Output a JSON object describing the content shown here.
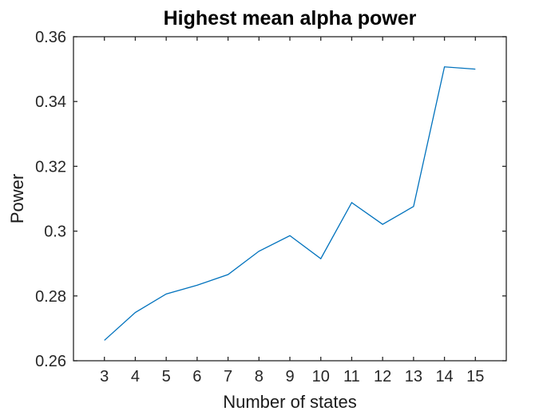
{
  "figure": {
    "background": "#ffffff"
  },
  "chart_data": {
    "type": "line",
    "title": "Highest mean alpha power",
    "xlabel": "Number of states",
    "ylabel": "Power",
    "x": [
      3,
      4,
      5,
      6,
      7,
      8,
      9,
      10,
      11,
      12,
      13,
      14,
      15
    ],
    "y": [
      0.2663,
      0.2749,
      0.2806,
      0.2833,
      0.2866,
      0.2938,
      0.2986,
      0.2915,
      0.3088,
      0.3021,
      0.3076,
      0.3507,
      0.35
    ],
    "xlim": [
      2,
      16
    ],
    "ylim": [
      0.26,
      0.36
    ],
    "xticks": [
      3,
      4,
      5,
      6,
      7,
      8,
      9,
      10,
      11,
      12,
      13,
      14,
      15
    ],
    "xtick_labels": [
      "3",
      "4",
      "5",
      "6",
      "7",
      "8",
      "9",
      "10",
      "11",
      "12",
      "13",
      "14",
      "15"
    ],
    "yticks": [
      0.26,
      0.28,
      0.3,
      0.32,
      0.34,
      0.36
    ],
    "ytick_labels": [
      "0.26",
      "0.28",
      "0.3",
      "0.32",
      "0.34",
      "0.36"
    ],
    "grid": false,
    "legend": "none",
    "line_color": "#0072BD",
    "axis_color": "#262626"
  }
}
